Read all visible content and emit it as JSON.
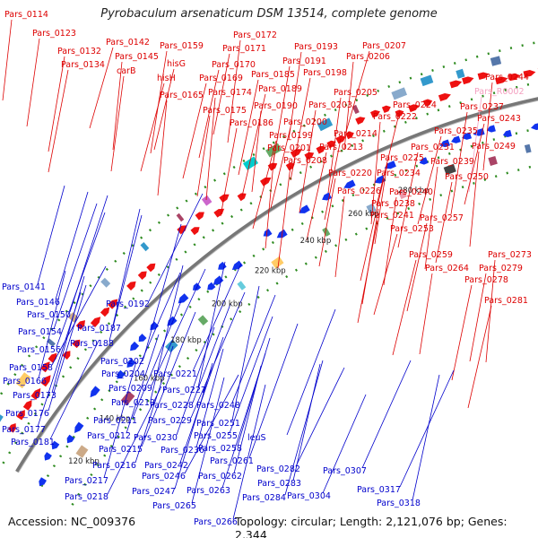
{
  "title": "Pyrobaculum arsenaticum DSM 13514, complete genome",
  "footer": {
    "accession": "Accession: NC_009376",
    "topology": "Topology: circular; Length: 2,121,076 bp; Genes: 2,344"
  },
  "colors": {
    "forward_label": "#dd0000",
    "reverse_label": "#0000cc",
    "rna_label": "#f4a0c0",
    "backbone": "#777777",
    "tick_marker": "#2e8b20"
  },
  "kbp_ticks": [
    "120 kbp",
    "140 kbp",
    "160 kbp",
    "180 kbp",
    "200 kbp",
    "220 kbp",
    "240 kbp",
    "260 kbp",
    "280 kbp"
  ],
  "forward_labels": [
    "Pars_0114",
    "Pars_0123",
    "Pars_0132",
    "Pars_0134",
    "Pars_0142",
    "Pars_0145",
    "carB",
    "Pars_0159",
    "hisG",
    "hisH",
    "Pars_0165",
    "Pars_0172",
    "Pars_0171",
    "Pars_0170",
    "Pars_0169",
    "Pars_0174",
    "Pars_0175",
    "Pars_0186",
    "Pars_0185",
    "Pars_0189",
    "Pars_0190",
    "Pars_0193",
    "Pars_0191",
    "Pars_0198",
    "Pars_0207",
    "Pars_0206",
    "Pars_0205",
    "Pars_0203",
    "Pars_0200",
    "Pars_0199",
    "Pars_0201",
    "Pars_0208",
    "Pars_0214",
    "Pars_0213",
    "Pars_0224",
    "Pars_0222",
    "Pars_0225",
    "Pars_0220",
    "Pars_0231",
    "Pars_0234",
    "Pars_0226",
    "Pars_0240",
    "Pars_0238",
    "Pars_0241",
    "Pars_0253",
    "Pars_0244",
    "Pars_R0002",
    "Pars_0237",
    "Pars_0243",
    "Pars_0235",
    "Pars_0249",
    "Pars_0239",
    "Pars_0250",
    "Pars_0257",
    "Pars_0259",
    "Pars_0273",
    "Pars_0264",
    "Pars_0279",
    "Pars_0278",
    "Pars_0281"
  ],
  "reverse_labels": [
    "Pars_0141",
    "Pars_0146",
    "Pars_0150",
    "Pars_0154",
    "Pars_0156",
    "Pars_0158",
    "Pars_0166",
    "Pars_0173",
    "Pars_0176",
    "Pars_0177",
    "Pars_0181",
    "Pars_0192",
    "Pars_0187",
    "Pars_0188",
    "Pars_0202",
    "Pars_0204",
    "Pars_0221",
    "Pars_0209",
    "Pars_0227",
    "Pars_0210",
    "Pars_0228",
    "Pars_0248",
    "Pars_0211",
    "Pars_0229",
    "Pars_0251",
    "Pars_0212",
    "Pars_0230",
    "Pars_0255",
    "leuS",
    "Pars_0215",
    "Pars_0236",
    "Pars_0258",
    "Pars_0216",
    "Pars_0242",
    "Pars_0261",
    "Pars_0246",
    "Pars_0262",
    "Pars_0217",
    "Pars_0247",
    "Pars_0263",
    "Pars_0282",
    "Pars_0218",
    "Pars_0283",
    "Pars_0265",
    "Pars_0284",
    "Pars_0304",
    "Pars_0307",
    "Pars_0317",
    "Pars_0318",
    "Pars_0266"
  ]
}
